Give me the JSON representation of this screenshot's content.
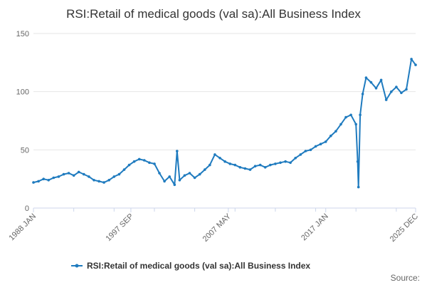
{
  "chart_data": {
    "type": "line",
    "title": "RSI:Retail of medical goods (val sa):All Business Index",
    "xlabel": "",
    "ylabel": "",
    "ylim": [
      0,
      150
    ],
    "yticks": [
      0,
      50,
      100,
      150
    ],
    "xlim": [
      "1988-01",
      "2025-12"
    ],
    "x_tick_labels": [
      "1988 JAN",
      "1997 SEP",
      "2007 MAY",
      "2017 JAN",
      "2025 DEC"
    ],
    "x_tick_dates": [
      "1988-01",
      "1997-09",
      "2007-05",
      "2017-01",
      "2025-12"
    ],
    "grid": "horizontal",
    "legend_position": "bottom",
    "colors": {
      "series": "#1f7bbf",
      "grid": "#e6e6e6",
      "axis": "#ccd6eb"
    },
    "source_label": "Source:",
    "series": [
      {
        "name": "RSI:Retail of medical goods (val sa):All Business Index",
        "x": [
          "1988-01",
          "1988-07",
          "1989-01",
          "1989-07",
          "1990-01",
          "1990-07",
          "1991-01",
          "1991-07",
          "1992-01",
          "1992-07",
          "1993-01",
          "1993-07",
          "1994-01",
          "1994-07",
          "1995-01",
          "1995-07",
          "1996-01",
          "1996-07",
          "1997-01",
          "1997-07",
          "1998-01",
          "1998-07",
          "1999-01",
          "1999-07",
          "2000-01",
          "2000-07",
          "2001-01",
          "2001-07",
          "2002-01",
          "2002-04",
          "2002-07",
          "2003-01",
          "2003-07",
          "2004-01",
          "2004-07",
          "2005-01",
          "2005-07",
          "2006-01",
          "2006-07",
          "2007-01",
          "2007-07",
          "2008-01",
          "2008-07",
          "2009-01",
          "2009-07",
          "2010-01",
          "2010-07",
          "2011-01",
          "2011-07",
          "2012-01",
          "2012-07",
          "2013-01",
          "2013-07",
          "2014-01",
          "2014-07",
          "2015-01",
          "2015-07",
          "2016-01",
          "2016-07",
          "2017-01",
          "2017-07",
          "2018-01",
          "2018-07",
          "2019-01",
          "2019-07",
          "2020-01",
          "2020-03",
          "2020-04",
          "2020-06",
          "2020-09",
          "2021-01",
          "2021-07",
          "2022-01",
          "2022-07",
          "2023-01",
          "2023-07",
          "2024-01",
          "2024-07",
          "2025-01",
          "2025-07",
          "2025-12"
        ],
        "values": [
          22,
          23,
          25,
          24,
          26,
          27,
          29,
          30,
          28,
          31,
          29,
          27,
          24,
          23,
          22,
          24,
          27,
          29,
          33,
          37,
          40,
          42,
          41,
          39,
          38,
          30,
          23,
          27,
          20,
          49,
          24,
          28,
          30,
          26,
          29,
          33,
          37,
          46,
          43,
          40,
          38,
          37,
          35,
          34,
          33,
          36,
          37,
          35,
          37,
          38,
          39,
          40,
          39,
          43,
          46,
          49,
          50,
          53,
          55,
          57,
          62,
          66,
          72,
          78,
          80,
          72,
          40,
          18,
          80,
          98,
          112,
          108,
          103,
          110,
          93,
          100,
          104,
          99,
          102,
          128,
          123
        ]
      }
    ]
  }
}
